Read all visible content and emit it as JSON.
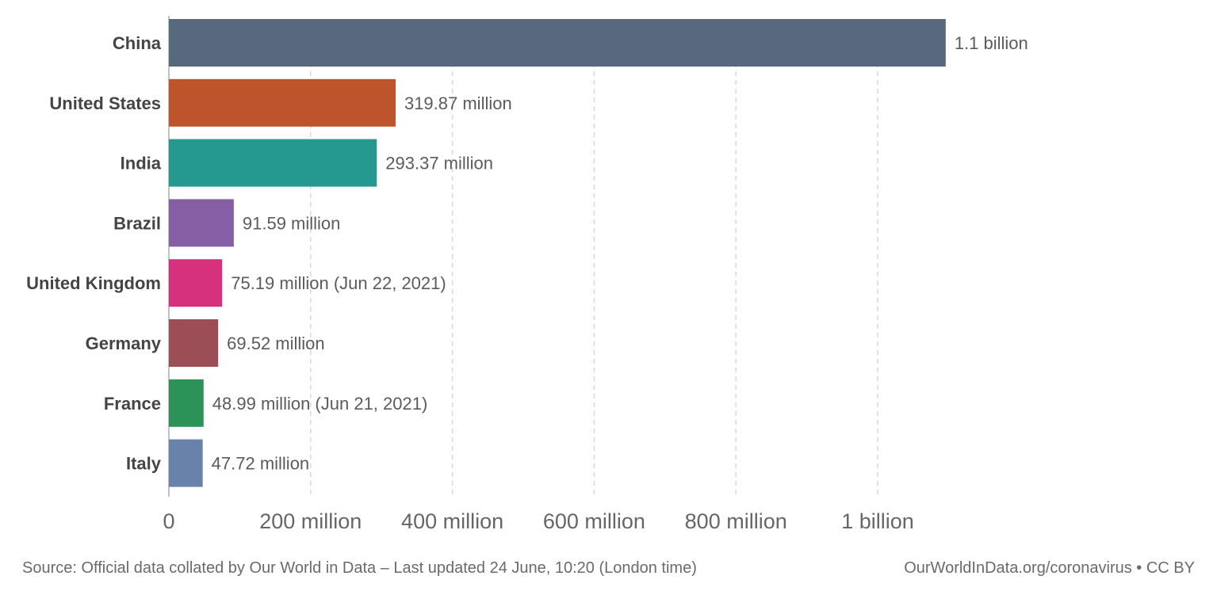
{
  "chart_data": {
    "type": "bar",
    "orientation": "horizontal",
    "categories": [
      "China",
      "United States",
      "India",
      "Brazil",
      "United Kingdom",
      "Germany",
      "France",
      "Italy"
    ],
    "values": [
      1096000000,
      319870000,
      293370000,
      91590000,
      75190000,
      69520000,
      48990000,
      47720000
    ],
    "value_labels": [
      "1.1 billion",
      "319.87 million",
      "293.37 million",
      "91.59 million",
      "75.19 million (Jun 22, 2021)",
      "69.52 million",
      "48.99 million (Jun 21, 2021)",
      "47.72 million"
    ],
    "colors": [
      "#58687f",
      "#be542c",
      "#25988f",
      "#865ea4",
      "#d5317d",
      "#9b4e55",
      "#2b9357",
      "#6882a9"
    ],
    "xlim": [
      0,
      1200000000
    ],
    "ticks": [
      0,
      200000000,
      400000000,
      600000000,
      800000000,
      1000000000
    ],
    "tick_labels": [
      "0",
      "200 million",
      "400 million",
      "600 million",
      "800 million",
      "1 billion"
    ],
    "grid": true,
    "title": "",
    "xlabel": "",
    "ylabel": ""
  },
  "footer": {
    "source": "Source: Official data collated by Our World in Data – Last updated 24 June, 10:20 (London time)",
    "credit": "OurWorldInData.org/coronavirus • CC BY"
  }
}
